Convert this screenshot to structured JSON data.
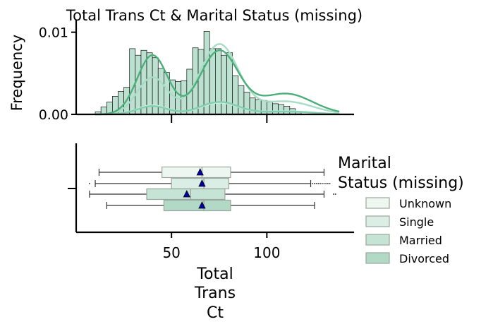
{
  "chart_data": [
    {
      "type": "histogram",
      "title": "Total Trans Ct & Marital Status (missing)",
      "ylabel": "Frequency",
      "xlim": [
        0,
        145
      ],
      "ylim": [
        0,
        0.011
      ],
      "ytick_labels": [
        "0.00",
        "0.01"
      ],
      "yticks": [
        0,
        0.01
      ],
      "xticks": [
        50,
        100
      ],
      "bin_edges_start": 10,
      "bin_width": 3,
      "hist_values": [
        0.0003,
        0.0009,
        0.0015,
        0.0022,
        0.0028,
        0.0033,
        0.008,
        0.0072,
        0.0078,
        0.0075,
        0.0069,
        0.0056,
        0.0051,
        0.0042,
        0.004,
        0.0041,
        0.0055,
        0.0081,
        0.0079,
        0.0101,
        0.008,
        0.008,
        0.0072,
        0.0075,
        0.0047,
        0.0035,
        0.0027,
        0.002,
        0.0018,
        0.0017,
        0.0015,
        0.0013,
        0.0012,
        0.001,
        0.0007,
        0.0004
      ],
      "series": [
        {
          "name": "Unknown",
          "kde_peaks": [
            [
              40,
              0.0011
            ],
            [
              75,
              0.0014
            ]
          ]
        },
        {
          "name": "Single",
          "kde_peaks": [
            [
              40,
              0.0045
            ],
            [
              75,
              0.0085
            ]
          ]
        },
        {
          "name": "Married",
          "kde_peaks": [
            [
              40,
              0.0072
            ],
            [
              75,
              0.0077
            ]
          ]
        },
        {
          "name": "Divorced",
          "kde_peaks": [
            [
              40,
              0.001
            ],
            [
              75,
              0.0015
            ]
          ]
        }
      ]
    },
    {
      "type": "boxplot",
      "xlabel": "Total Trans Ct",
      "xlim": [
        0,
        145
      ],
      "xticks": [
        50,
        100
      ],
      "xtick_labels": [
        "50",
        "100"
      ],
      "series": [
        {
          "name": "Unknown",
          "whisker_low": 12,
          "q1": 45,
          "median": 66,
          "q3": 81,
          "whisker_high": 130,
          "mean": 65,
          "outliers_low": [],
          "outliers_high": []
        },
        {
          "name": "Single",
          "whisker_low": 10,
          "q1": 50,
          "median": 67,
          "q3": 80,
          "whisker_high": 123,
          "mean": 66,
          "outliers_low": [
            7
          ],
          "outliers_high": [
            124,
            125,
            126,
            127,
            128,
            129,
            130,
            131,
            132,
            133
          ]
        },
        {
          "name": "Married",
          "whisker_low": 7,
          "q1": 37,
          "median": 60,
          "q3": 78,
          "whisker_high": 130,
          "mean": 58,
          "outliers_low": [],
          "outliers_high": [
            135,
            136
          ]
        },
        {
          "name": "Divorced",
          "whisker_low": 16,
          "q1": 46,
          "median": 67,
          "q3": 81,
          "whisker_high": 125,
          "mean": 66,
          "outliers_low": [],
          "outliers_high": []
        }
      ]
    }
  ],
  "legend": {
    "title": "Marital Status (missing)",
    "title_lines": [
      "Marital",
      "Status (missing)"
    ],
    "entries": [
      "Unknown",
      "Single",
      "Married",
      "Divorced"
    ],
    "placement": "right"
  },
  "xlabel_lines": [
    "Total",
    "Trans",
    "Ct"
  ],
  "colors": {
    "Unknown": "#eef6f2",
    "Single": "#daeee5",
    "Married": "#c5e4d5",
    "Divorced": "#b1d9c5",
    "hist_fill": "#b2dcc8",
    "kde_Unknown": "#cfeee0",
    "kde_Single": "#a7dcc6",
    "kde_Married": "#4caf7a",
    "kde_Divorced": "#7fcfb0",
    "mean_marker": "#0000aa"
  }
}
